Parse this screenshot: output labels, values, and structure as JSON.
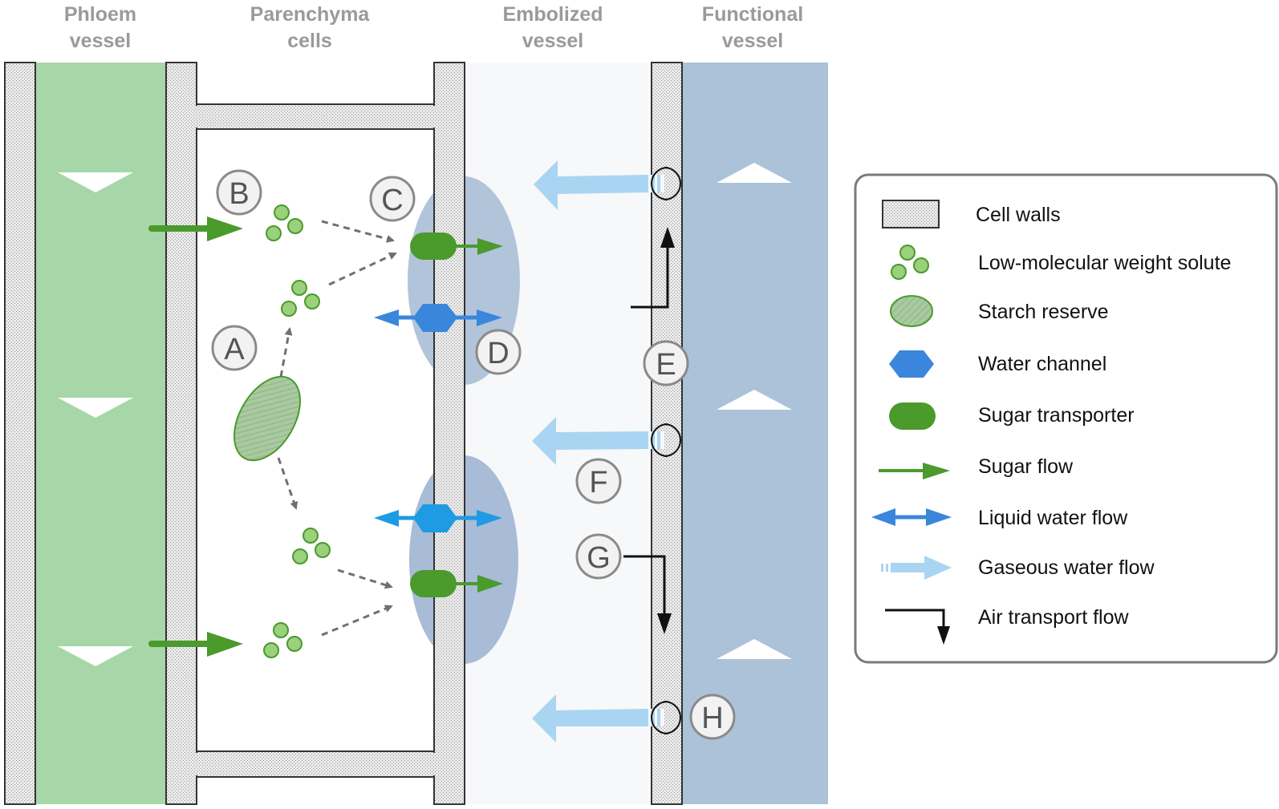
{
  "headers": {
    "phloem": [
      "Phloem",
      "vessel"
    ],
    "parenchyma": [
      "Parenchyma",
      "cells"
    ],
    "embolized": [
      "Embolized",
      "vessel"
    ],
    "functional": [
      "Functional",
      "vessel"
    ]
  },
  "labels": {
    "A": "A",
    "B": "B",
    "C": "C",
    "D": "D",
    "E": "E",
    "F": "F",
    "G": "G",
    "H": "H"
  },
  "legend": {
    "cell_walls": "Cell walls",
    "solute": "Low-molecular weight solute",
    "starch": "Starch reserve",
    "water_channel": "Water channel",
    "sugar_transporter": "Sugar transporter",
    "sugar_flow": "Sugar flow",
    "liquid_flow": "Liquid water flow",
    "gaseous_flow": "Gaseous water flow",
    "air_flow": "Air transport flow"
  },
  "colors": {
    "phloem": "#a7d7a8",
    "functional": "#abc2d8",
    "embolized": "#f7f8f9",
    "sugar_green": "#4a9a2c",
    "solute_green": "#9bd07c",
    "water_blue": "#3a86dc",
    "gas_blue": "#a9d5f2",
    "wall_fill": "#e6e6e6",
    "wall_stroke": "#333333",
    "label_circle": "#f2f2f2"
  }
}
